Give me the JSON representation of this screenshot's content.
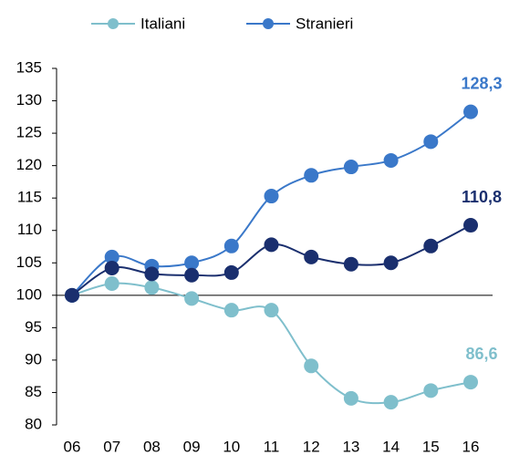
{
  "chart_data": {
    "type": "line",
    "categories": [
      "06",
      "07",
      "08",
      "09",
      "10",
      "11",
      "12",
      "13",
      "14",
      "15",
      "16"
    ],
    "series": [
      {
        "name": "Italiani",
        "color": "#7fbfcc",
        "values": [
          100,
          101.8,
          101.2,
          99.5,
          97.7,
          97.7,
          89.1,
          84.1,
          83.5,
          85.3,
          86.6
        ],
        "value_labels": [
          null,
          null,
          null,
          null,
          null,
          null,
          null,
          null,
          null,
          null,
          "86,6"
        ]
      },
      {
        "name": "Stranieri",
        "color": "#3a78c9",
        "values": [
          100,
          105.9,
          104.5,
          105.0,
          107.6,
          115.3,
          118.5,
          119.8,
          120.8,
          123.7,
          128.3
        ],
        "value_labels": [
          null,
          null,
          null,
          null,
          null,
          null,
          null,
          null,
          null,
          null,
          "128,3"
        ]
      },
      {
        "color": "#1a2f6e",
        "values": [
          100,
          104.2,
          103.3,
          103.1,
          103.5,
          107.8,
          105.9,
          104.8,
          105.0,
          107.6,
          110.8
        ],
        "value_labels": [
          null,
          null,
          null,
          null,
          null,
          null,
          null,
          null,
          null,
          null,
          "110,8"
        ]
      }
    ],
    "ylim": [
      80,
      135
    ],
    "yticks": [
      80,
      85,
      90,
      95,
      100,
      105,
      110,
      115,
      120,
      125,
      130,
      135
    ],
    "x_axis_crossing": 100,
    "legend": "top",
    "grid": false
  }
}
